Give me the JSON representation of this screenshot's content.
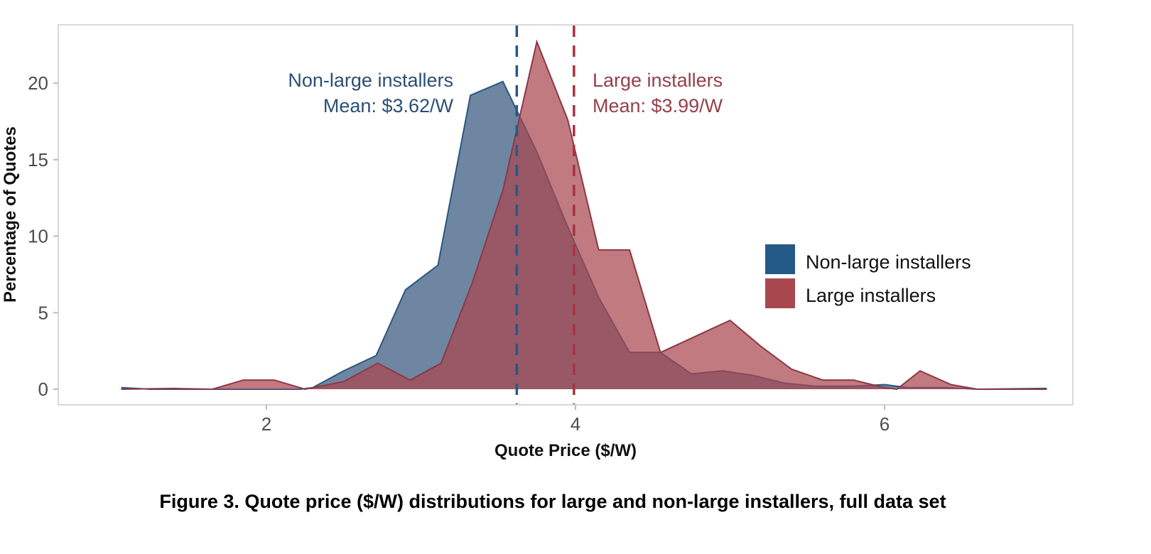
{
  "chart_data": {
    "type": "area",
    "title": "",
    "caption": "Figure 3. Quote price ($/W) distributions for large and non-large installers, full data set",
    "xlabel": "Quote Price ($/W)",
    "ylabel": "Percentage of Quotes",
    "xlim": [
      0.85,
      7.25
    ],
    "ylim": [
      -1,
      23.5
    ],
    "xticks": [
      2,
      4,
      6
    ],
    "yticks": [
      0,
      5,
      10,
      15,
      20
    ],
    "grid": false,
    "legend_position": "right",
    "series": [
      {
        "name": "Non-large installers",
        "color": "#245a87",
        "mean": 3.62,
        "annotation": [
          "Non-large installers",
          "Mean: $3.62/W"
        ],
        "points": [
          [
            1.06,
            0.1
          ],
          [
            1.25,
            0
          ],
          [
            1.45,
            0
          ],
          [
            1.65,
            0
          ],
          [
            1.85,
            0
          ],
          [
            2.05,
            0
          ],
          [
            2.22,
            0
          ],
          [
            2.3,
            0.1
          ],
          [
            2.5,
            1.2
          ],
          [
            2.71,
            2.2
          ],
          [
            2.9,
            6.5
          ],
          [
            3.11,
            8.1
          ],
          [
            3.32,
            19.2
          ],
          [
            3.53,
            20.1
          ],
          [
            3.75,
            15.5
          ],
          [
            3.95,
            10.6
          ],
          [
            4.15,
            6.0
          ],
          [
            4.35,
            2.4
          ],
          [
            4.55,
            2.4
          ],
          [
            4.75,
            1.0
          ],
          [
            4.95,
            1.2
          ],
          [
            5.15,
            0.9
          ],
          [
            5.35,
            0.4
          ],
          [
            5.55,
            0.2
          ],
          [
            5.8,
            0.2
          ],
          [
            6.0,
            0.3
          ],
          [
            6.15,
            0.1
          ],
          [
            6.4,
            0.1
          ],
          [
            6.6,
            0
          ],
          [
            7.05,
            0.05
          ]
        ]
      },
      {
        "name": "Large installers",
        "color": "#a9474f",
        "mean": 3.99,
        "annotation": [
          "Large installers",
          "Mean: $3.99/W"
        ],
        "points": [
          [
            1.06,
            0
          ],
          [
            1.4,
            0.05
          ],
          [
            1.65,
            0
          ],
          [
            1.85,
            0.6
          ],
          [
            2.05,
            0.6
          ],
          [
            2.25,
            0
          ],
          [
            2.5,
            0.5
          ],
          [
            2.72,
            1.7
          ],
          [
            2.93,
            0.6
          ],
          [
            3.13,
            1.7
          ],
          [
            3.33,
            6.9
          ],
          [
            3.53,
            13.0
          ],
          [
            3.75,
            22.7
          ],
          [
            3.95,
            17.6
          ],
          [
            4.15,
            9.1
          ],
          [
            4.35,
            9.1
          ],
          [
            4.55,
            2.4
          ],
          [
            5.0,
            4.5
          ],
          [
            5.2,
            2.8
          ],
          [
            5.4,
            1.3
          ],
          [
            5.6,
            0.6
          ],
          [
            5.8,
            0.6
          ],
          [
            6.0,
            0.1
          ],
          [
            6.08,
            0
          ],
          [
            6.23,
            1.2
          ],
          [
            6.43,
            0.3
          ],
          [
            6.6,
            0
          ],
          [
            7.05,
            0
          ]
        ]
      }
    ]
  }
}
